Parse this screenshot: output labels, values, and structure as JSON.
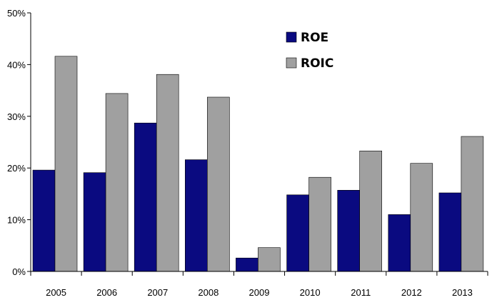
{
  "chart_data": {
    "type": "bar",
    "title": "",
    "xlabel": "",
    "ylabel": "",
    "categories": [
      "2005",
      "2006",
      "2007",
      "2008",
      "2009",
      "2010",
      "2011",
      "2012",
      "2013"
    ],
    "series": [
      {
        "name": "ROE",
        "color": "#0a0a80",
        "values": [
          19.6,
          19.1,
          28.7,
          21.6,
          2.6,
          14.8,
          15.7,
          11.0,
          15.2
        ]
      },
      {
        "name": "ROIC",
        "color": "#a0a0a0",
        "values": [
          41.6,
          34.4,
          38.1,
          33.7,
          4.6,
          18.2,
          23.3,
          20.9,
          26.1
        ]
      }
    ],
    "ylim": [
      0,
      50
    ],
    "yticks": [
      0,
      10,
      20,
      30,
      40,
      50
    ],
    "ytick_labels": [
      "0%",
      "10%",
      "20%",
      "30%",
      "40%",
      "50%"
    ],
    "grid": false,
    "legend_position": "top-center"
  }
}
